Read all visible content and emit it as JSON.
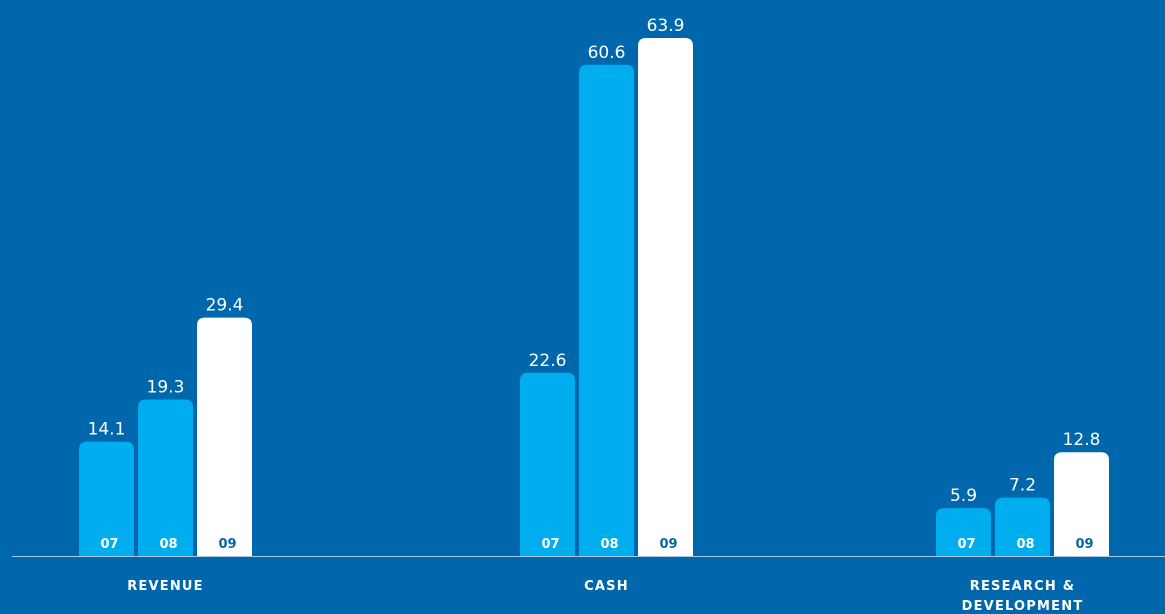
{
  "chart_data": {
    "type": "bar",
    "categories": [
      "REVENUE",
      "CASH",
      "RESEARCH & DEVELOPMENT"
    ],
    "category_label_lines": [
      [
        "REVENUE"
      ],
      [
        "CASH"
      ],
      [
        "RESEARCH &",
        "DEVELOPMENT"
      ]
    ],
    "years": [
      "07",
      "08",
      "09"
    ],
    "series": [
      {
        "name": "07",
        "values": [
          14.1,
          22.6,
          5.9
        ]
      },
      {
        "name": "08",
        "values": [
          19.3,
          60.6,
          7.2
        ]
      },
      {
        "name": "09",
        "values": [
          29.4,
          63.9,
          12.8
        ]
      }
    ],
    "value_labels": [
      [
        "14.1",
        "19.3",
        "29.4"
      ],
      [
        "22.6",
        "60.6",
        "63.9"
      ],
      [
        "5.9",
        "7.2",
        "12.8"
      ]
    ],
    "ylim": [
      0,
      63.9
    ],
    "grid": false,
    "legend": "none",
    "colors": {
      "background": "#0067ac",
      "prior_years_bar": "#00adef",
      "current_year_bar": "#ffffff",
      "prior_years_label": "#ffffff",
      "current_year_label": "#0067ac",
      "baseline": "#a8c8e4"
    }
  }
}
